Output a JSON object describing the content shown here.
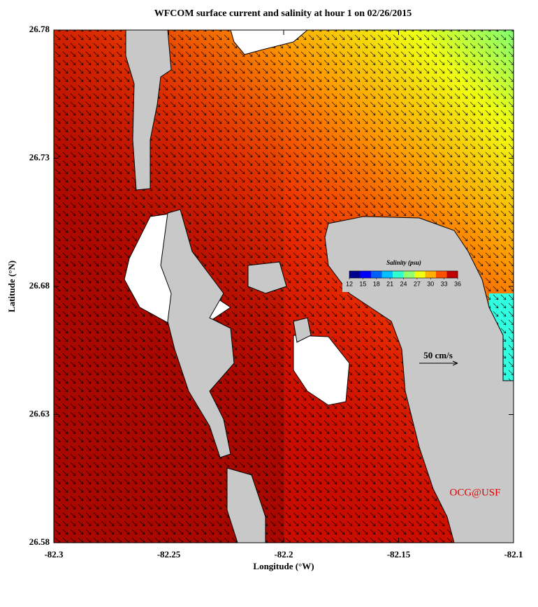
{
  "chart_data": {
    "type": "map",
    "title": "WFCOM surface current and salinity at hour 1 on 02/26/2015",
    "x_label": "Longitude (°W)",
    "y_label": "Latitude (°N)",
    "xlim": [
      -82.3,
      -82.1
    ],
    "xticks": [
      -82.3,
      -82.25,
      -82.2,
      -82.15,
      -82.1
    ],
    "ylim": [
      26.58,
      26.78
    ],
    "yticks": [
      26.58,
      26.63,
      26.68,
      26.73,
      26.78
    ],
    "colorbar": {
      "label": "Salinity (psu)",
      "lim": [
        12,
        36
      ],
      "ticks": [
        12,
        15,
        18,
        21,
        24,
        27,
        30,
        33,
        36
      ],
      "colors": [
        "#00008f",
        "#0000ff",
        "#0060ff",
        "#00c0ff",
        "#30ffd0",
        "#90ff70",
        "#f0ff10",
        "#ffb000",
        "#ff5000",
        "#c00000"
      ]
    },
    "scale_label": "50 cm/s",
    "credit": "OCG@USF"
  }
}
